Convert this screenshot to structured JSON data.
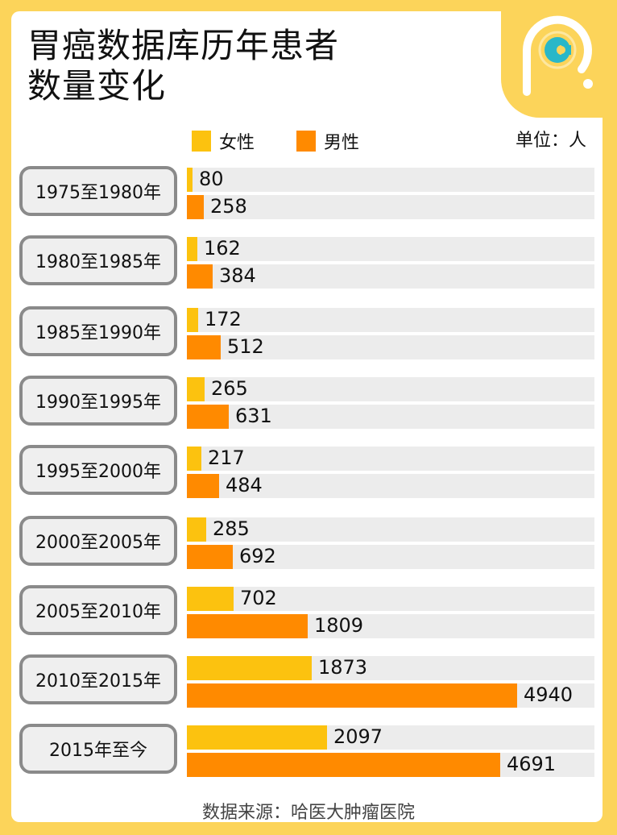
{
  "title_line1": "胃癌数据库历年患者",
  "title_line2": "数量变化",
  "legend": {
    "female": "女性",
    "male": "男性"
  },
  "unit": "单位：人",
  "source": "数据来源：哈医大肿瘤医院",
  "colors": {
    "female": "#fcc20f",
    "male": "#ff8a00",
    "track": "#ececec",
    "background": "#fcd45a",
    "logo_accent": "#29b7c8"
  },
  "rows": [
    {
      "label": "1975至1980年",
      "female": "80",
      "male": "258"
    },
    {
      "label": "1980至1985年",
      "female": "162",
      "male": "384"
    },
    {
      "label": "1985至1990年",
      "female": "172",
      "male": "512"
    },
    {
      "label": "1990至1995年",
      "female": "265",
      "male": "631"
    },
    {
      "label": "1995至2000年",
      "female": "217",
      "male": "484"
    },
    {
      "label": "2000至2005年",
      "female": "285",
      "male": "692"
    },
    {
      "label": "2005至2010年",
      "female": "702",
      "male": "1809"
    },
    {
      "label": "2010至2015年",
      "female": "1873",
      "male": "4940"
    },
    {
      "label": "2015年至今",
      "female": "2097",
      "male": "4691"
    }
  ],
  "chart_data": {
    "type": "bar",
    "orientation": "horizontal",
    "title": "胃癌数据库历年患者数量变化",
    "categories": [
      "1975至1980年",
      "1980至1985年",
      "1985至1990年",
      "1990至1995年",
      "1995至2000年",
      "2000至2005年",
      "2005至2010年",
      "2010至2015年",
      "2015年至今"
    ],
    "series": [
      {
        "name": "女性",
        "color": "#fcc20f",
        "values": [
          80,
          162,
          172,
          265,
          217,
          285,
          702,
          1873,
          2097
        ]
      },
      {
        "name": "男性",
        "color": "#ff8a00",
        "values": [
          258,
          384,
          512,
          631,
          484,
          692,
          1809,
          4940,
          4691
        ]
      }
    ],
    "xlabel": "",
    "ylabel": "",
    "unit": "单位：人",
    "legend_position": "top",
    "grid": false,
    "data_labels": true,
    "source": "数据来源：哈医大肿瘤医院"
  }
}
